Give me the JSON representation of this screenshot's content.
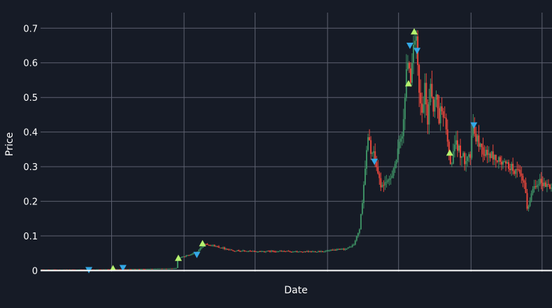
{
  "theme": {
    "background": "#161b26",
    "grid": "#5d6170",
    "text": "#ffffff",
    "up_color": "#3d8f63",
    "down_color": "#e8473c",
    "buy_marker_color": "#b6f36e",
    "sell_marker_color": "#33a8e6",
    "baseline": "#ffffff"
  },
  "chart_data": {
    "type": "candlestick",
    "title": "",
    "xlabel": "Date",
    "ylabel": "Price",
    "ylim": [
      -0.003,
      0.745
    ],
    "yticks": [
      {
        "value": 0,
        "label": "0"
      },
      {
        "value": 0.1,
        "label": "0.1"
      },
      {
        "value": 0.2,
        "label": "0.2"
      },
      {
        "value": 0.3,
        "label": "0.3"
      },
      {
        "value": 0.4,
        "label": "0.4"
      },
      {
        "value": 0.5,
        "label": "0.5"
      },
      {
        "value": 0.6,
        "label": "0.6"
      },
      {
        "value": 0.7,
        "label": "0.7"
      }
    ],
    "x_range": [
      0,
      360
    ],
    "x_gridlines": [
      50,
      101,
      151,
      202,
      252,
      303,
      353
    ],
    "x_tick_labels": [],
    "grid": true,
    "legend": "none",
    "price_path": [
      [
        0,
        0.003
      ],
      [
        30,
        0.003
      ],
      [
        60,
        0.004
      ],
      [
        90,
        0.006
      ],
      [
        95,
        0.007
      ],
      [
        96,
        0.035
      ],
      [
        104,
        0.045
      ],
      [
        110,
        0.055
      ],
      [
        115,
        0.078
      ],
      [
        125,
        0.068
      ],
      [
        135,
        0.058
      ],
      [
        150,
        0.055
      ],
      [
        165,
        0.056
      ],
      [
        185,
        0.054
      ],
      [
        200,
        0.056
      ],
      [
        215,
        0.063
      ],
      [
        220,
        0.075
      ],
      [
        224,
        0.12
      ],
      [
        226,
        0.2
      ],
      [
        228,
        0.3
      ],
      [
        230,
        0.38
      ],
      [
        232,
        0.35
      ],
      [
        234,
        0.33
      ],
      [
        236,
        0.3
      ],
      [
        238,
        0.26
      ],
      [
        240,
        0.24
      ],
      [
        242,
        0.26
      ],
      [
        244,
        0.25
      ],
      [
        246,
        0.27
      ],
      [
        248,
        0.3
      ],
      [
        250,
        0.32
      ],
      [
        252,
        0.36
      ],
      [
        254,
        0.4
      ],
      [
        256,
        0.5
      ],
      [
        258,
        0.62
      ],
      [
        260,
        0.56
      ],
      [
        262,
        0.66
      ],
      [
        264,
        0.65
      ],
      [
        266,
        0.5
      ],
      [
        268,
        0.45
      ],
      [
        270,
        0.52
      ],
      [
        272,
        0.43
      ],
      [
        274,
        0.55
      ],
      [
        276,
        0.47
      ],
      [
        278,
        0.5
      ],
      [
        280,
        0.44
      ],
      [
        282,
        0.48
      ],
      [
        284,
        0.43
      ],
      [
        286,
        0.37
      ],
      [
        288,
        0.3
      ],
      [
        290,
        0.34
      ],
      [
        292,
        0.36
      ],
      [
        294,
        0.35
      ],
      [
        296,
        0.33
      ],
      [
        298,
        0.32
      ],
      [
        300,
        0.34
      ],
      [
        302,
        0.33
      ],
      [
        304,
        0.42
      ],
      [
        306,
        0.38
      ],
      [
        308,
        0.37
      ],
      [
        312,
        0.34
      ],
      [
        318,
        0.33
      ],
      [
        324,
        0.31
      ],
      [
        330,
        0.3
      ],
      [
        336,
        0.28
      ],
      [
        340,
        0.25
      ],
      [
        342,
        0.18
      ],
      [
        344,
        0.2
      ],
      [
        346,
        0.24
      ],
      [
        350,
        0.26
      ],
      [
        354,
        0.25
      ],
      [
        360,
        0.24
      ]
    ],
    "buy_markers": [
      {
        "x": 51,
        "y": 0.006
      },
      {
        "x": 97,
        "y": 0.036
      },
      {
        "x": 114,
        "y": 0.078
      },
      {
        "x": 259,
        "y": 0.54
      },
      {
        "x": 263,
        "y": 0.69
      },
      {
        "x": 288,
        "y": 0.34
      }
    ],
    "sell_markers": [
      {
        "x": 34,
        "y": 0.002
      },
      {
        "x": 58,
        "y": 0.008
      },
      {
        "x": 110,
        "y": 0.046
      },
      {
        "x": 235,
        "y": 0.315
      },
      {
        "x": 260,
        "y": 0.65
      },
      {
        "x": 265,
        "y": 0.635
      },
      {
        "x": 305,
        "y": 0.42
      }
    ]
  }
}
